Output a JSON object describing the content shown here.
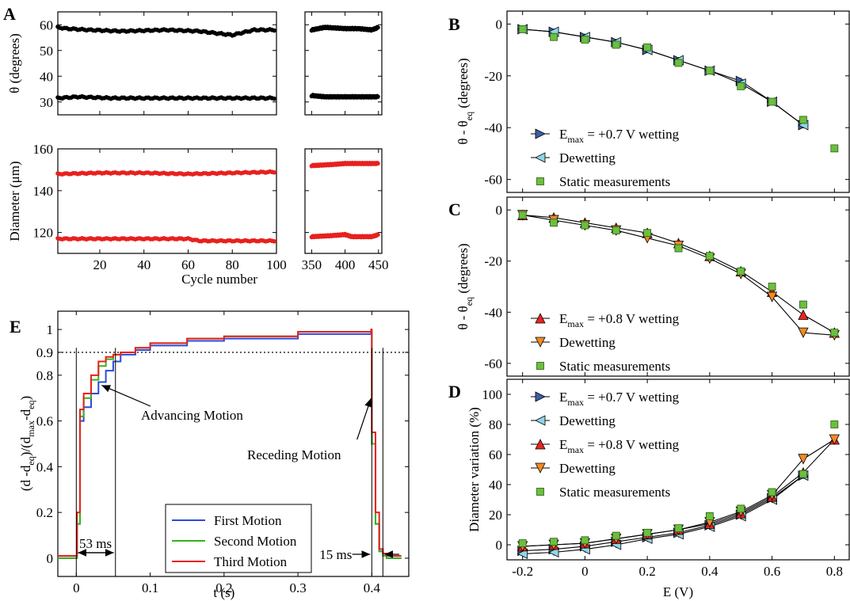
{
  "chart_data": [
    {
      "panel": "A",
      "type": "scatter",
      "ylabel": "θ (degrees)",
      "ylim": [
        25,
        65
      ],
      "yticks": [
        30,
        40,
        50,
        60
      ],
      "segments": [
        {
          "xlim": [
            1,
            100
          ],
          "xticks": [
            20,
            40,
            60,
            80,
            100
          ]
        },
        {
          "xlim": [
            340,
            455
          ],
          "xticks": [
            350,
            400,
            450
          ]
        }
      ],
      "series": [
        {
          "color": "#000000",
          "segment": 0,
          "points": [
            [
              1,
              59
            ],
            [
              5,
              58.5
            ],
            [
              15,
              58
            ],
            [
              30,
              57.5
            ],
            [
              50,
              58
            ],
            [
              65,
              57.5
            ],
            [
              75,
              56.5
            ],
            [
              80,
              56
            ],
            [
              85,
              57
            ],
            [
              90,
              58
            ],
            [
              100,
              58
            ]
          ]
        },
        {
          "color": "#000000",
          "segment": 0,
          "points": [
            [
              1,
              31.5
            ],
            [
              10,
              32
            ],
            [
              25,
              31.5
            ],
            [
              40,
              31.5
            ],
            [
              60,
              31.5
            ],
            [
              80,
              31.5
            ],
            [
              100,
              31.5
            ]
          ]
        },
        {
          "color": "#000000",
          "segment": 1,
          "points": [
            [
              350,
              58
            ],
            [
              370,
              59
            ],
            [
              400,
              58.5
            ],
            [
              420,
              58.5
            ],
            [
              440,
              58
            ],
            [
              450,
              59
            ]
          ]
        },
        {
          "color": "#000000",
          "segment": 1,
          "points": [
            [
              350,
              32.5
            ],
            [
              370,
              32
            ],
            [
              400,
              32
            ],
            [
              430,
              32
            ],
            [
              450,
              32
            ]
          ]
        }
      ]
    },
    {
      "panel": "A2",
      "type": "scatter",
      "ylabel": "Diameter (μm)",
      "xlabel": "Cycle number",
      "ylim": [
        110,
        160
      ],
      "yticks": [
        120,
        140,
        160
      ],
      "segments": [
        {
          "xlim": [
            1,
            100
          ],
          "xticks": [
            20,
            40,
            60,
            80,
            100
          ]
        },
        {
          "xlim": [
            340,
            455
          ],
          "xticks": [
            350,
            400,
            450
          ]
        }
      ],
      "series": [
        {
          "color": "#e8201e",
          "segment": 0,
          "points": [
            [
              1,
              148
            ],
            [
              20,
              148.5
            ],
            [
              40,
              148.5
            ],
            [
              60,
              148
            ],
            [
              80,
              148.5
            ],
            [
              100,
              149
            ]
          ]
        },
        {
          "color": "#e8201e",
          "segment": 0,
          "points": [
            [
              1,
              117
            ],
            [
              30,
              117
            ],
            [
              60,
              117
            ],
            [
              65,
              116
            ],
            [
              80,
              116
            ],
            [
              100,
              116
            ]
          ]
        },
        {
          "color": "#e8201e",
          "segment": 1,
          "points": [
            [
              350,
              152
            ],
            [
              380,
              152.5
            ],
            [
              400,
              153
            ],
            [
              420,
              153
            ],
            [
              450,
              153
            ]
          ]
        },
        {
          "color": "#e8201e",
          "segment": 1,
          "points": [
            [
              350,
              118
            ],
            [
              380,
              118.5
            ],
            [
              400,
              119
            ],
            [
              410,
              118
            ],
            [
              440,
              118
            ],
            [
              450,
              119
            ]
          ]
        }
      ]
    },
    {
      "panel": "B",
      "type": "line",
      "ylabel": "θ - θeq (degrees)",
      "ylim": [
        -65,
        5
      ],
      "yticks": [
        0,
        -20,
        -40,
        -60
      ],
      "xlim": [
        -0.25,
        0.85
      ],
      "legend": [
        "Emax = +0.7 V wetting",
        "Dewetting",
        "Static measurements"
      ],
      "series": [
        {
          "name": "Emax = +0.7 V wetting",
          "marker": "tri-right",
          "color": "#3b5fa8",
          "x": [
            -0.2,
            -0.1,
            0,
            0.1,
            0.2,
            0.3,
            0.4,
            0.5,
            0.6,
            0.7
          ],
          "y": [
            -2,
            -3,
            -5,
            -7,
            -10,
            -14,
            -18,
            -22,
            -30,
            -39
          ]
        },
        {
          "name": "Dewetting",
          "marker": "tri-left",
          "color": "#8ed6e8",
          "x": [
            -0.2,
            -0.1,
            0,
            0.1,
            0.2,
            0.3,
            0.4,
            0.5,
            0.6,
            0.7
          ],
          "y": [
            -2,
            -3,
            -5,
            -7,
            -10,
            -14,
            -18,
            -23,
            -30,
            -39
          ]
        },
        {
          "name": "Static measurements",
          "marker": "square",
          "color": "#6cbf3c",
          "x": [
            -0.2,
            -0.1,
            0,
            0.1,
            0.2,
            0.3,
            0.4,
            0.5,
            0.6,
            0.7,
            0.8
          ],
          "y": [
            -2,
            -5,
            -6,
            -8,
            -9,
            -15,
            -18,
            -24,
            -30,
            -37,
            -48
          ]
        }
      ]
    },
    {
      "panel": "C",
      "type": "line",
      "ylabel": "θ - θeq (degrees)",
      "ylim": [
        -65,
        5
      ],
      "yticks": [
        0,
        -20,
        -40,
        -60
      ],
      "xlim": [
        -0.25,
        0.85
      ],
      "legend": [
        "Emax = +0.8 V wetting",
        "Dewetting",
        "Static measurements"
      ],
      "series": [
        {
          "name": "Emax = +0.8 V wetting",
          "marker": "tri-up",
          "color": "#e8241e",
          "x": [
            -0.2,
            -0.1,
            0,
            0.1,
            0.2,
            0.3,
            0.4,
            0.5,
            0.6,
            0.7,
            0.8
          ],
          "y": [
            -2,
            -3,
            -5,
            -7,
            -9,
            -13,
            -18,
            -24,
            -32,
            -41,
            -48
          ]
        },
        {
          "name": "Dewetting",
          "marker": "tri-down",
          "color": "#f08a24",
          "x": [
            -0.2,
            -0.1,
            0,
            0.1,
            0.2,
            0.3,
            0.4,
            0.5,
            0.6,
            0.7,
            0.8
          ],
          "y": [
            -2,
            -4,
            -6,
            -8,
            -11,
            -14,
            -19,
            -25,
            -34,
            -48,
            -49
          ]
        },
        {
          "name": "Static measurements",
          "marker": "square",
          "color": "#6cbf3c",
          "x": [
            -0.2,
            -0.1,
            0,
            0.1,
            0.2,
            0.3,
            0.4,
            0.5,
            0.6,
            0.7,
            0.8
          ],
          "y": [
            -2,
            -5,
            -6,
            -8,
            -9,
            -15,
            -18,
            -24,
            -30,
            -37,
            -48
          ]
        }
      ]
    },
    {
      "panel": "D",
      "type": "line",
      "ylabel": "Diameter variation (%)",
      "xlabel": "E (V)",
      "ylim": [
        -10,
        110
      ],
      "yticks": [
        0,
        20,
        40,
        60,
        80,
        100
      ],
      "xlim": [
        -0.25,
        0.85
      ],
      "xticks": [
        -0.2,
        0,
        0.2,
        0.4,
        0.6,
        0.8
      ],
      "xticklabels": [
        "-0.2",
        "0",
        "0.2",
        "0.4",
        "0.6",
        "0.8"
      ],
      "legend": [
        "Emax = +0.7 V wetting",
        "Dewetting",
        "Emax = +0.8 V wetting",
        "Dewetting",
        "Static measurements"
      ],
      "series": [
        {
          "name": "Emax = +0.7 V wetting",
          "marker": "tri-right",
          "color": "#3b5fa8",
          "x": [
            -0.2,
            -0.1,
            0,
            0.1,
            0.2,
            0.3,
            0.4,
            0.5,
            0.6,
            0.7
          ],
          "y": [
            -4,
            -3,
            -1,
            2,
            5,
            8,
            13,
            20,
            31,
            46
          ]
        },
        {
          "name": "Dewetting",
          "marker": "tri-left",
          "color": "#8ed6e8",
          "x": [
            -0.2,
            -0.1,
            0,
            0.1,
            0.2,
            0.3,
            0.4,
            0.5,
            0.6,
            0.7
          ],
          "y": [
            -6,
            -5,
            -3,
            0,
            4,
            7,
            12,
            19,
            30,
            46
          ]
        },
        {
          "name": "Emax = +0.8 V wetting",
          "marker": "tri-up",
          "color": "#e8241e",
          "x": [
            -0.2,
            -0.1,
            0,
            0.1,
            0.2,
            0.3,
            0.4,
            0.5,
            0.6,
            0.7,
            0.8
          ],
          "y": [
            -1,
            0,
            1,
            4,
            7,
            10,
            14,
            21,
            32,
            48,
            70
          ]
        },
        {
          "name": "Dewetting",
          "marker": "tri-down",
          "color": "#f08a24",
          "x": [
            -0.2,
            -0.1,
            0,
            0.1,
            0.2,
            0.3,
            0.4,
            0.5,
            0.6,
            0.7,
            0.8
          ],
          "y": [
            -1,
            0,
            1,
            4,
            7,
            10,
            15,
            22,
            33,
            57,
            70
          ]
        },
        {
          "name": "Static measurements",
          "marker": "square",
          "color": "#6cbf3c",
          "x": [
            -0.2,
            -0.1,
            0,
            0.1,
            0.2,
            0.3,
            0.4,
            0.5,
            0.6,
            0.7,
            0.8
          ],
          "y": [
            1,
            2,
            3,
            6,
            8,
            11,
            19,
            24,
            35,
            47,
            80
          ]
        }
      ]
    },
    {
      "panel": "E",
      "type": "line",
      "ylabel": "(d -deq)/(dmax-deq)",
      "xlabel": "t (s)",
      "xlim": [
        -0.025,
        0.45
      ],
      "ylim": [
        -0.08,
        1.08
      ],
      "xticks": [
        0,
        0.1,
        0.2,
        0.3,
        0.4
      ],
      "yticks": [
        0,
        0.2,
        0.4,
        0.6,
        0.8,
        0.9,
        1
      ],
      "hline": 0.9,
      "legend": [
        "First Motion",
        "Second Motion",
        "Third Motion"
      ],
      "annotations": [
        "Advancing Motion",
        "Receding Motion",
        "53 ms",
        "15 ms"
      ],
      "series": [
        {
          "name": "First Motion",
          "color": "#2b4bd8",
          "x": [
            -0.025,
            0,
            0.001,
            0.005,
            0.01,
            0.02,
            0.03,
            0.04,
            0.05,
            0.06,
            0.08,
            0.1,
            0.15,
            0.2,
            0.3,
            0.399,
            0.4,
            0.405,
            0.41,
            0.415,
            0.42,
            0.44
          ],
          "y": [
            0,
            0,
            0.15,
            0.6,
            0.66,
            0.72,
            0.77,
            0.82,
            0.86,
            0.89,
            0.91,
            0.93,
            0.95,
            0.96,
            0.98,
            0.99,
            0.5,
            0.15,
            0.03,
            0.02,
            0,
            0
          ]
        },
        {
          "name": "Second Motion",
          "color": "#34b41c",
          "x": [
            -0.025,
            0,
            0.001,
            0.005,
            0.01,
            0.02,
            0.03,
            0.04,
            0.05,
            0.06,
            0.08,
            0.1,
            0.15,
            0.2,
            0.3,
            0.399,
            0.4,
            0.405,
            0.41,
            0.415,
            0.42,
            0.44
          ],
          "y": [
            0,
            0,
            0.15,
            0.62,
            0.7,
            0.78,
            0.84,
            0.87,
            0.89,
            0.9,
            0.92,
            0.94,
            0.96,
            0.97,
            0.99,
            0.99,
            0.5,
            0.15,
            0.03,
            0.01,
            0,
            0
          ]
        },
        {
          "name": "Third Motion",
          "color": "#e8201e",
          "x": [
            -0.025,
            0,
            0.001,
            0.005,
            0.01,
            0.02,
            0.03,
            0.04,
            0.05,
            0.06,
            0.08,
            0.1,
            0.15,
            0.2,
            0.3,
            0.399,
            0.4,
            0.405,
            0.41,
            0.415,
            0.42,
            0.44
          ],
          "y": [
            0.01,
            0.01,
            0.2,
            0.65,
            0.72,
            0.8,
            0.86,
            0.88,
            0.89,
            0.9,
            0.92,
            0.94,
            0.96,
            0.97,
            0.99,
            1,
            0.55,
            0.2,
            0.04,
            0.02,
            0.01,
            0.01
          ]
        }
      ]
    }
  ],
  "labels": {
    "A": "A",
    "B": "B",
    "C": "C",
    "D": "D",
    "E": "E",
    "advancing": "Advancing Motion",
    "receding": "Receding Motion",
    "t53": "53 ms",
    "t15": "15 ms"
  }
}
